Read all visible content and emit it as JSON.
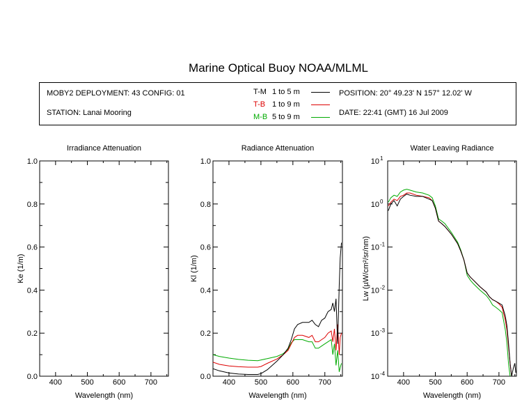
{
  "title": "Marine Optical Buoy NOAA/MLML",
  "info": {
    "deployment": "MOBY2 DEPLOYMENT: 43 CONFIG: 01",
    "station": "STATION: Lanai Mooring",
    "position": "POSITION: 20° 49.23' N   157° 12.02' W",
    "date": "DATE: 22:41 (GMT) 16 Jul 2009",
    "legend": [
      {
        "label": "T-M",
        "range": "1 to 5  m",
        "color": "#000000"
      },
      {
        "label": "T-B",
        "range": "1 to 9  m",
        "color": "#dd0000"
      },
      {
        "label": "M-B",
        "range": "5 to 9  m",
        "color": "#00aa00"
      }
    ]
  },
  "chart_data": [
    {
      "type": "line",
      "title": "Irradiance Attenuation",
      "xlabel": "Wavelength (nm)",
      "ylabel": "Ke  (1/m)",
      "xlim": [
        350,
        755
      ],
      "ylim": [
        0,
        1.0
      ],
      "xticks": [
        400,
        500,
        600,
        700
      ],
      "yticks": [
        0.0,
        0.2,
        0.4,
        0.6,
        0.8,
        1.0
      ],
      "yticklabels": [
        "0.0",
        "0.2",
        "0.4",
        "0.6",
        "0.8",
        "1.0"
      ],
      "series": []
    },
    {
      "type": "line",
      "title": "Radiance Attenuation",
      "xlabel": "Wavelength (nm)",
      "ylabel": "Kl  (1/m)",
      "xlim": [
        350,
        755
      ],
      "ylim": [
        0,
        1.0
      ],
      "xticks": [
        400,
        500,
        600,
        700
      ],
      "yticks": [
        0.0,
        0.2,
        0.4,
        0.6,
        0.8,
        1.0
      ],
      "yticklabels": [
        "0.0",
        "0.2",
        "0.4",
        "0.6",
        "0.8",
        "1.0"
      ],
      "series": [
        {
          "color": "#000000",
          "x": [
            350,
            370,
            400,
            430,
            460,
            490,
            500,
            520,
            550,
            570,
            585,
            595,
            605,
            615,
            630,
            650,
            660,
            670,
            680,
            690,
            700,
            710,
            720,
            725,
            730,
            735,
            740,
            745,
            748,
            752
          ],
          "y": [
            0.035,
            0.025,
            0.015,
            0.01,
            0.008,
            0.008,
            0.012,
            0.03,
            0.07,
            0.1,
            0.13,
            0.17,
            0.22,
            0.24,
            0.25,
            0.25,
            0.26,
            0.24,
            0.23,
            0.26,
            0.27,
            0.3,
            0.31,
            0.34,
            0.3,
            0.36,
            0.15,
            0.42,
            0.55,
            0.62
          ]
        },
        {
          "color": "#dd0000",
          "x": [
            350,
            370,
            400,
            430,
            460,
            490,
            500,
            520,
            550,
            570,
            585,
            595,
            605,
            615,
            630,
            650,
            660,
            670,
            680,
            690,
            700,
            710,
            720,
            725,
            730,
            735,
            740,
            745,
            748,
            752
          ],
          "y": [
            0.065,
            0.055,
            0.048,
            0.044,
            0.042,
            0.042,
            0.045,
            0.06,
            0.08,
            0.1,
            0.12,
            0.15,
            0.18,
            0.19,
            0.19,
            0.18,
            0.19,
            0.16,
            0.16,
            0.17,
            0.18,
            0.2,
            0.21,
            0.16,
            0.22,
            0.12,
            0.24,
            0.1,
            0.18,
            0.2
          ]
        },
        {
          "color": "#00aa00",
          "x": [
            350,
            370,
            400,
            430,
            460,
            490,
            500,
            520,
            550,
            570,
            585,
            595,
            605,
            615,
            630,
            650,
            660,
            670,
            680,
            690,
            700,
            710,
            720,
            725,
            730,
            735,
            740,
            745,
            748,
            752
          ],
          "y": [
            0.1,
            0.092,
            0.084,
            0.078,
            0.074,
            0.072,
            0.075,
            0.082,
            0.092,
            0.105,
            0.125,
            0.155,
            0.17,
            0.17,
            0.17,
            0.16,
            0.16,
            0.13,
            0.13,
            0.14,
            0.15,
            0.16,
            0.17,
            0.1,
            0.15,
            0.05,
            0.12,
            0.02,
            0.04,
            0.06
          ]
        }
      ]
    },
    {
      "type": "line",
      "title": "Water Leaving Radiance",
      "xlabel": "Wavelength (nm)",
      "ylabel": "Lw  (µW/cm²/sr/nm)",
      "xlim": [
        350,
        755
      ],
      "ylim": [
        0.0001,
        10
      ],
      "yscale": "log",
      "xticks": [
        400,
        500,
        600,
        700
      ],
      "yticks": [
        1,
        0,
        -1,
        -2,
        -3,
        -4
      ],
      "yticklabels": [
        "10",
        "10",
        "10",
        "10",
        "10",
        "10"
      ],
      "yticksup": [
        "1",
        "0",
        "-1",
        "-2",
        "-3",
        "-4"
      ],
      "series": [
        {
          "color": "#000000",
          "x": [
            352,
            360,
            370,
            380,
            390,
            400,
            410,
            420,
            440,
            460,
            480,
            490,
            500,
            510,
            520,
            530,
            550,
            570,
            580,
            590,
            600,
            610,
            620,
            640,
            660,
            670,
            680,
            690,
            700,
            710,
            720,
            725,
            730,
            735,
            740,
            745,
            750,
            753
          ],
          "y": [
            0.7,
            1.0,
            1.2,
            0.9,
            1.3,
            1.5,
            1.7,
            1.6,
            1.5,
            1.5,
            1.3,
            1.2,
            0.8,
            0.4,
            0.35,
            0.3,
            0.2,
            0.12,
            0.08,
            0.05,
            0.025,
            0.02,
            0.017,
            0.012,
            0.009,
            0.007,
            0.006,
            0.0055,
            0.005,
            0.0045,
            0.0025,
            0.0015,
            0.0006,
            0.0002,
            0.0001,
            0.00015,
            0.0002,
            0.00012
          ]
        },
        {
          "color": "#dd0000",
          "x": [
            352,
            360,
            370,
            380,
            390,
            400,
            410,
            420,
            440,
            460,
            480,
            490,
            500,
            510,
            520,
            530,
            550,
            570,
            580,
            590,
            600,
            610,
            620,
            640,
            660,
            670,
            680,
            690,
            700,
            710,
            720,
            725,
            730,
            735,
            740
          ],
          "y": [
            0.9,
            1.1,
            1.3,
            1.2,
            1.5,
            1.6,
            1.8,
            1.8,
            1.6,
            1.5,
            1.4,
            1.2,
            0.8,
            0.4,
            0.35,
            0.3,
            0.2,
            0.12,
            0.08,
            0.05,
            0.025,
            0.02,
            0.017,
            0.012,
            0.009,
            0.007,
            0.006,
            0.0055,
            0.0048,
            0.004,
            0.002,
            0.0012,
            0.0005,
            0.0002,
            0.0001
          ]
        },
        {
          "color": "#00aa00",
          "x": [
            352,
            360,
            370,
            380,
            390,
            400,
            410,
            420,
            440,
            460,
            480,
            490,
            500,
            510,
            520,
            530,
            550,
            570,
            580,
            590,
            600,
            610,
            620,
            640,
            660,
            670,
            680,
            690,
            700,
            710,
            720,
            725,
            730,
            735
          ],
          "y": [
            1.1,
            1.4,
            1.6,
            1.5,
            1.9,
            2.1,
            2.2,
            2.1,
            1.9,
            1.8,
            1.6,
            1.4,
            0.9,
            0.45,
            0.4,
            0.35,
            0.22,
            0.13,
            0.085,
            0.05,
            0.022,
            0.017,
            0.014,
            0.01,
            0.0075,
            0.006,
            0.0045,
            0.004,
            0.0035,
            0.003,
            0.0012,
            0.0006,
            0.0002,
            0.0001
          ]
        }
      ]
    }
  ]
}
